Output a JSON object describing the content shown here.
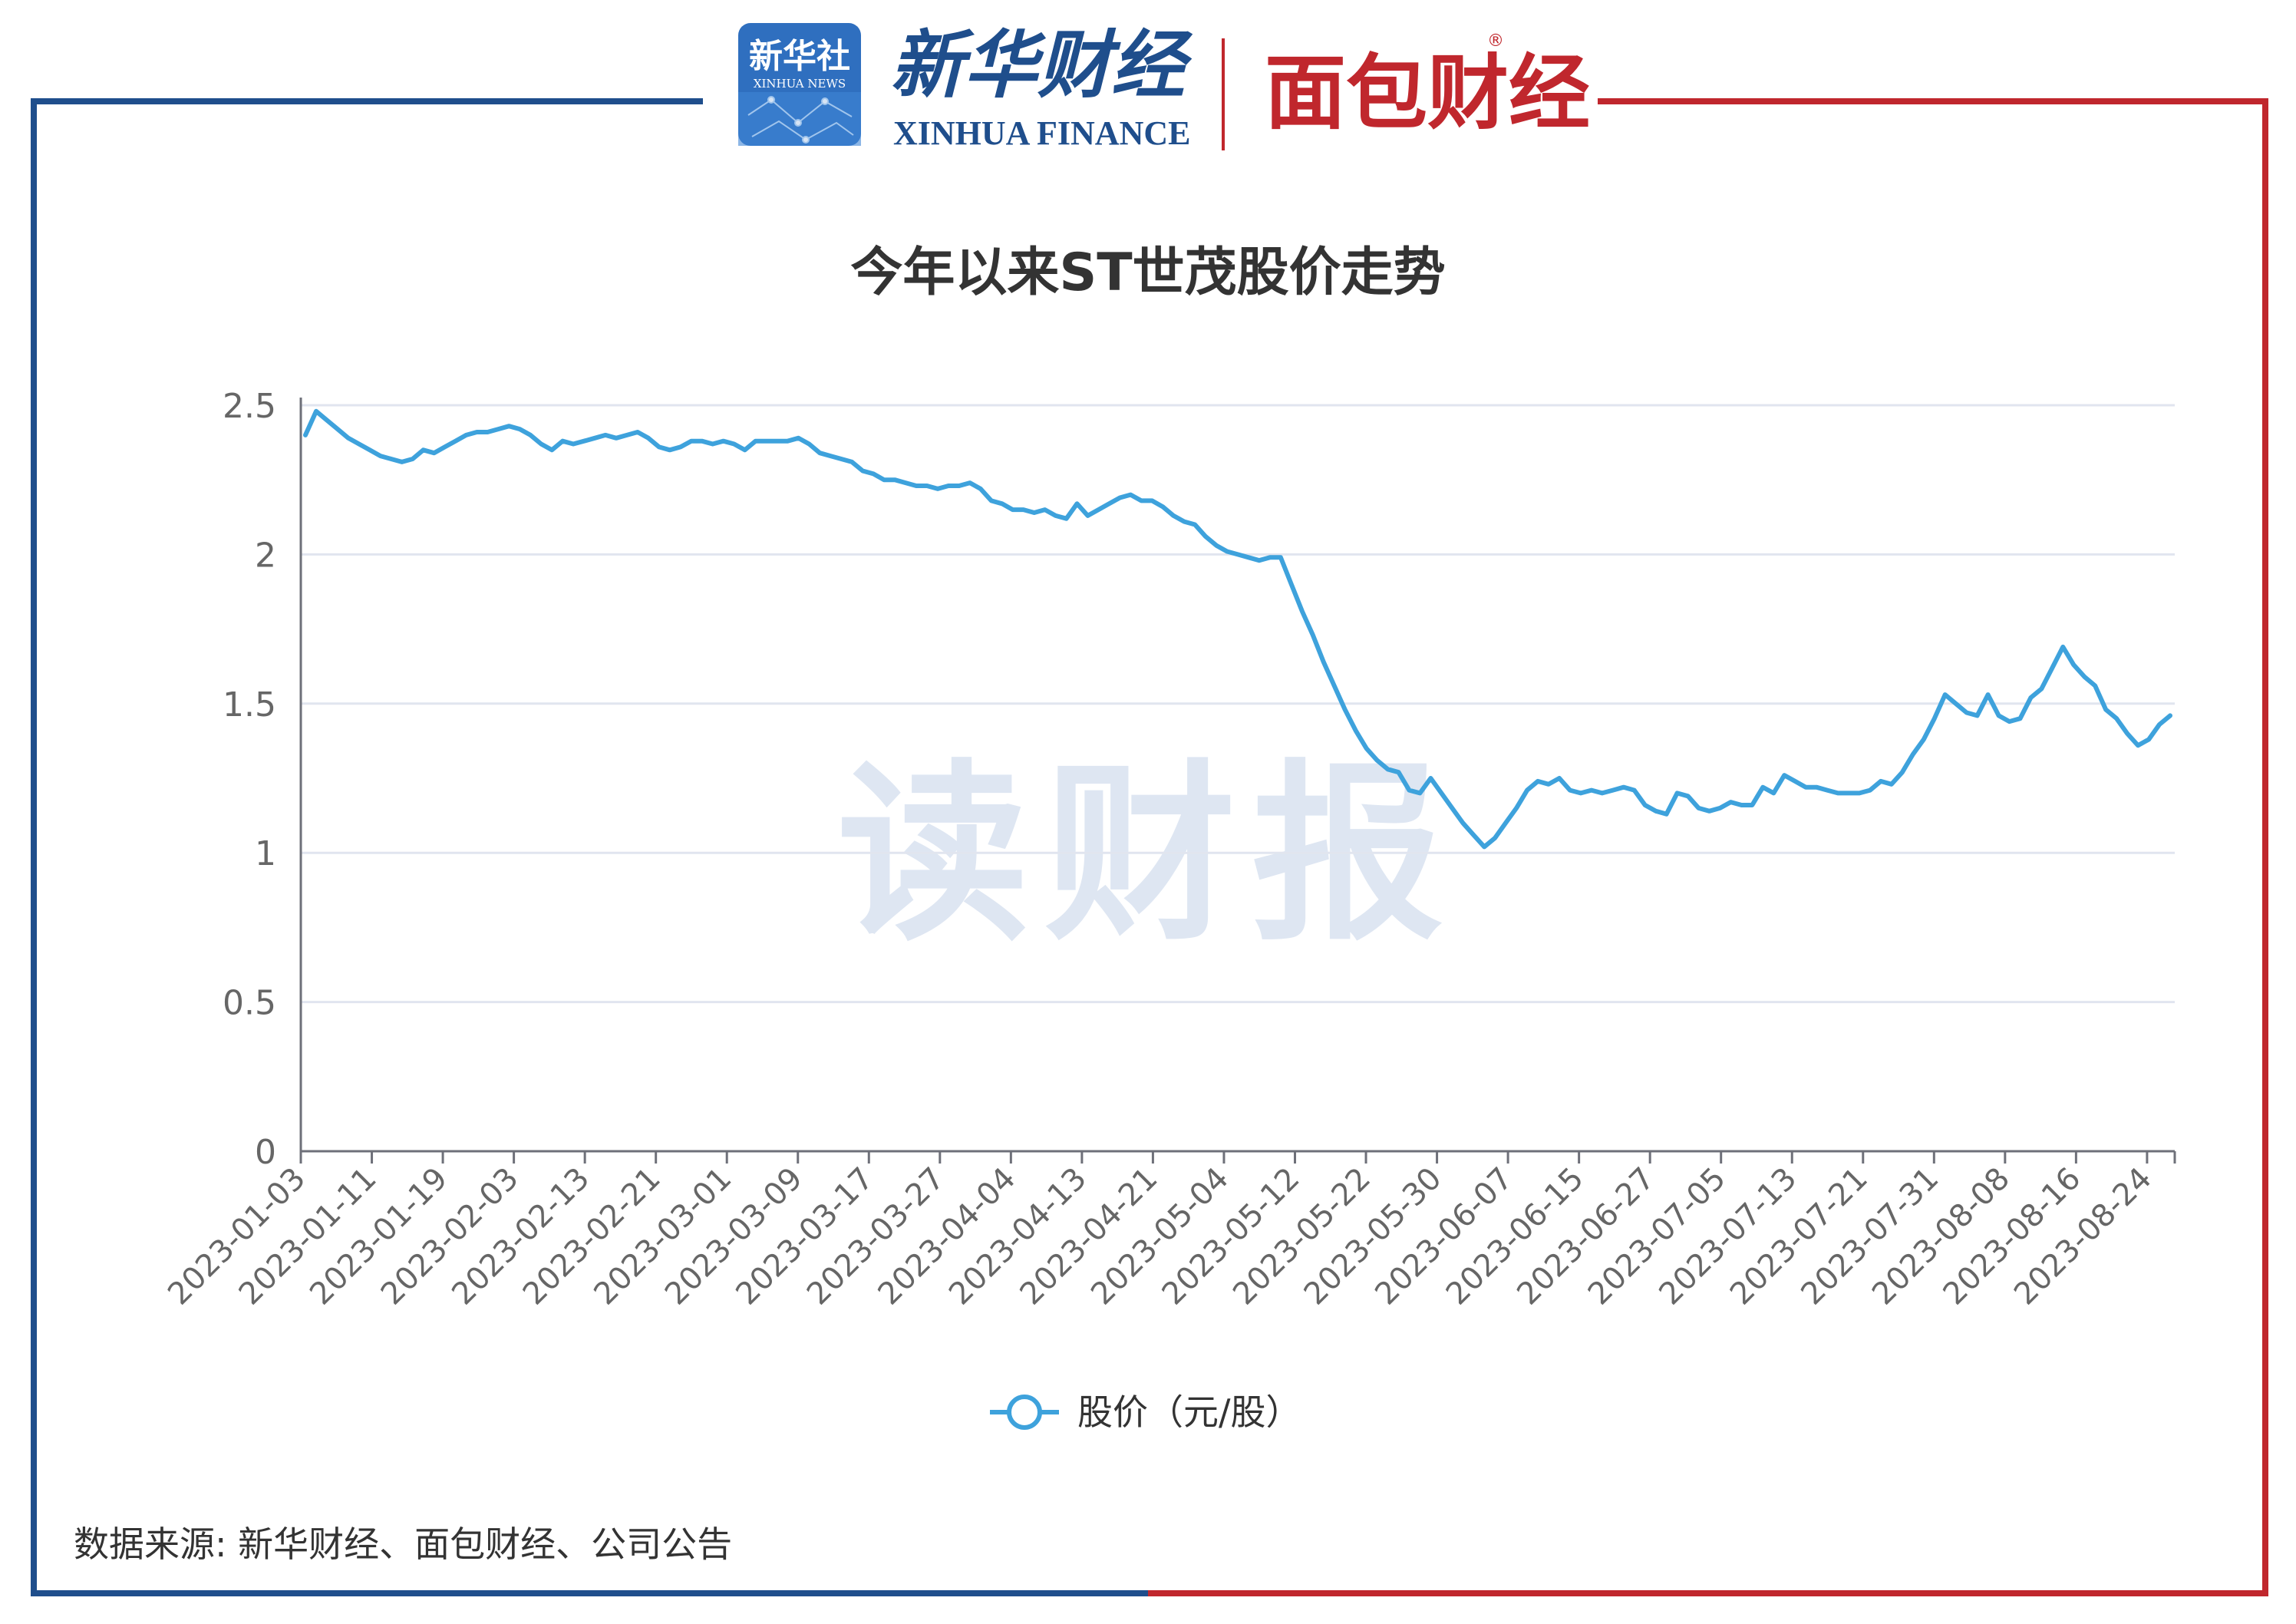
{
  "header": {
    "xinhua_badge": "新华社",
    "xinhua_badge_sub": "XINHUA NEWS",
    "xinhua_finance_cn": "新华财经",
    "xinhua_finance_en": "XINHUA FINANCE",
    "mianbao_logo": "面包财经",
    "registered_mark": "®"
  },
  "watermark": "读财报",
  "source_note": "数据来源: 新华财经、面包财经、公司公告",
  "colors": {
    "frame_left_blue": "#1f4e8c",
    "frame_right_red": "#c0272d",
    "line": "#3ea2dc",
    "grid": "#e1e5ef",
    "axis_text": "#666666",
    "title_text": "#333333",
    "watermark": "#dbe4f1"
  },
  "chart_data": {
    "type": "line",
    "title": "今年以来ST世茂股价走势",
    "xlabel": "",
    "ylabel": "",
    "ylim": [
      0,
      2.5
    ],
    "yticks": [
      0,
      0.5,
      1,
      1.5,
      2,
      2.5
    ],
    "ytick_labels": [
      "0",
      "0.5",
      "1",
      "1.5",
      "2",
      "2.5"
    ],
    "grid": true,
    "legend_position": "bottom-center",
    "x_tick_labels": [
      "2023-01-03",
      "2023-01-11",
      "2023-01-19",
      "2023-02-03",
      "2023-02-13",
      "2023-02-21",
      "2023-03-01",
      "2023-03-09",
      "2023-03-17",
      "2023-03-27",
      "2023-04-04",
      "2023-04-13",
      "2023-04-21",
      "2023-05-04",
      "2023-05-12",
      "2023-05-22",
      "2023-05-30",
      "2023-06-07",
      "2023-06-15",
      "2023-06-27",
      "2023-07-05",
      "2023-07-13",
      "2023-07-21",
      "2023-07-31",
      "2023-08-08",
      "2023-08-16",
      "2023-08-24"
    ],
    "series": [
      {
        "name": "股价（元/股）",
        "values": [
          2.4,
          2.48,
          2.45,
          2.42,
          2.39,
          2.37,
          2.35,
          2.33,
          2.32,
          2.31,
          2.32,
          2.35,
          2.34,
          2.36,
          2.38,
          2.4,
          2.41,
          2.41,
          2.42,
          2.43,
          2.42,
          2.4,
          2.37,
          2.35,
          2.38,
          2.37,
          2.38,
          2.39,
          2.4,
          2.39,
          2.4,
          2.41,
          2.39,
          2.36,
          2.35,
          2.36,
          2.38,
          2.38,
          2.37,
          2.38,
          2.37,
          2.35,
          2.38,
          2.38,
          2.38,
          2.38,
          2.39,
          2.37,
          2.34,
          2.33,
          2.32,
          2.31,
          2.28,
          2.27,
          2.25,
          2.25,
          2.24,
          2.23,
          2.23,
          2.22,
          2.23,
          2.23,
          2.24,
          2.22,
          2.18,
          2.17,
          2.15,
          2.15,
          2.14,
          2.15,
          2.13,
          2.12,
          2.17,
          2.13,
          2.15,
          2.17,
          2.19,
          2.2,
          2.18,
          2.18,
          2.16,
          2.13,
          2.11,
          2.1,
          2.06,
          2.03,
          2.01,
          2.0,
          1.99,
          1.98,
          1.99,
          1.99,
          1.9,
          1.81,
          1.73,
          1.64,
          1.56,
          1.48,
          1.41,
          1.35,
          1.31,
          1.28,
          1.27,
          1.21,
          1.2,
          1.25,
          1.2,
          1.15,
          1.1,
          1.06,
          1.02,
          1.05,
          1.1,
          1.15,
          1.21,
          1.24,
          1.23,
          1.25,
          1.21,
          1.2,
          1.21,
          1.2,
          1.21,
          1.22,
          1.21,
          1.16,
          1.14,
          1.13,
          1.2,
          1.19,
          1.15,
          1.14,
          1.15,
          1.17,
          1.16,
          1.16,
          1.22,
          1.2,
          1.26,
          1.24,
          1.22,
          1.22,
          1.21,
          1.2,
          1.2,
          1.2,
          1.21,
          1.24,
          1.23,
          1.27,
          1.33,
          1.38,
          1.45,
          1.53,
          1.5,
          1.47,
          1.46,
          1.53,
          1.46,
          1.44,
          1.45,
          1.52,
          1.55,
          1.62,
          1.69,
          1.63,
          1.59,
          1.56,
          1.48,
          1.45,
          1.4,
          1.36,
          1.38,
          1.43,
          1.46
        ]
      }
    ]
  }
}
